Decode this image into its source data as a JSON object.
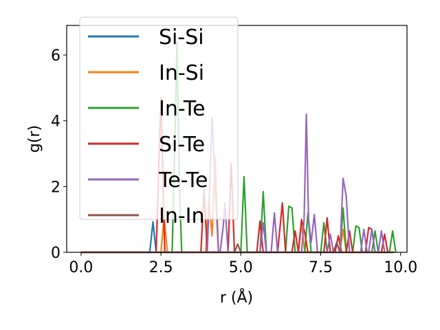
{
  "chart_data": {
    "type": "line",
    "xlabel": "r (Å)",
    "ylabel": "g(r)",
    "xlim": [
      -0.45,
      10.2
    ],
    "ylim": [
      0,
      6.9
    ],
    "xticks": [
      {
        "value": 0.0,
        "label": "0.0"
      },
      {
        "value": 2.5,
        "label": "2.5"
      },
      {
        "value": 5.0,
        "label": "5.0"
      },
      {
        "value": 7.5,
        "label": "7.5"
      },
      {
        "value": 10.0,
        "label": "10.0"
      }
    ],
    "yticks": [
      {
        "value": 0,
        "label": "0"
      },
      {
        "value": 2,
        "label": "2"
      },
      {
        "value": 4,
        "label": "4"
      },
      {
        "value": 6,
        "label": "6"
      }
    ],
    "grid": false,
    "legend_position": "upper-left",
    "series": [
      {
        "name": "Si-Si",
        "color": "#1f77b4",
        "points": [
          [
            0,
            0
          ],
          [
            2.15,
            0
          ],
          [
            2.25,
            0.93
          ],
          [
            2.35,
            0
          ],
          [
            9.8,
            0
          ]
        ]
      },
      {
        "name": "In-Si",
        "color": "#ff7f0e",
        "points": [
          [
            0,
            0
          ],
          [
            2.5,
            0
          ],
          [
            2.6,
            1.1
          ],
          [
            2.7,
            0
          ],
          [
            3.9,
            0
          ],
          [
            4.0,
            1.6
          ],
          [
            4.1,
            0.5
          ],
          [
            4.2,
            2.9
          ],
          [
            4.3,
            0
          ],
          [
            6.8,
            0
          ],
          [
            6.9,
            0.9
          ],
          [
            7.0,
            0
          ],
          [
            8.1,
            0
          ],
          [
            8.2,
            0.7
          ],
          [
            8.3,
            0
          ],
          [
            9.8,
            0
          ]
        ]
      },
      {
        "name": "In-Te",
        "color": "#2ca02c",
        "points": [
          [
            0,
            0
          ],
          [
            2.85,
            0
          ],
          [
            2.95,
            4.0
          ],
          [
            3.0,
            6.4
          ],
          [
            3.08,
            2.0
          ],
          [
            3.15,
            0
          ],
          [
            5.0,
            0
          ],
          [
            5.1,
            2.3
          ],
          [
            5.2,
            0
          ],
          [
            5.6,
            0
          ],
          [
            5.7,
            1.85
          ],
          [
            5.8,
            0
          ],
          [
            6.4,
            0
          ],
          [
            6.5,
            1.4
          ],
          [
            6.6,
            1.35
          ],
          [
            6.7,
            0
          ],
          [
            7.0,
            0
          ],
          [
            7.1,
            1.2
          ],
          [
            7.2,
            0
          ],
          [
            7.5,
            0
          ],
          [
            7.6,
            0.9
          ],
          [
            7.7,
            0
          ],
          [
            8.1,
            0
          ],
          [
            8.2,
            1.35
          ],
          [
            8.3,
            0
          ],
          [
            8.5,
            0
          ],
          [
            8.6,
            0.8
          ],
          [
            8.7,
            0.75
          ],
          [
            8.8,
            0
          ],
          [
            9.1,
            0
          ],
          [
            9.2,
            0.65
          ],
          [
            9.3,
            0
          ],
          [
            9.65,
            0
          ],
          [
            9.75,
            0.65
          ],
          [
            9.85,
            0
          ]
        ]
      },
      {
        "name": "Si-Te",
        "color": "#d62728",
        "points": [
          [
            0,
            0
          ],
          [
            2.35,
            0
          ],
          [
            2.5,
            4.7
          ],
          [
            2.62,
            0
          ],
          [
            3.75,
            0
          ],
          [
            3.85,
            1.9
          ],
          [
            3.95,
            0
          ],
          [
            4.6,
            0
          ],
          [
            4.7,
            2.7
          ],
          [
            4.8,
            0
          ],
          [
            5.5,
            0
          ],
          [
            5.6,
            0.95
          ],
          [
            5.7,
            0
          ],
          [
            6.15,
            0
          ],
          [
            6.3,
            1.5
          ],
          [
            6.4,
            0
          ],
          [
            6.6,
            0
          ],
          [
            6.7,
            0.65
          ],
          [
            6.8,
            0
          ],
          [
            6.9,
            1.0
          ],
          [
            7.0,
            0.6
          ],
          [
            7.1,
            0
          ],
          [
            7.6,
            0
          ],
          [
            7.7,
            1.05
          ],
          [
            7.8,
            0
          ],
          [
            7.95,
            0
          ],
          [
            8.05,
            0.5
          ],
          [
            8.15,
            0
          ],
          [
            8.3,
            0
          ],
          [
            8.4,
            0.65
          ],
          [
            8.5,
            0
          ],
          [
            8.9,
            0
          ],
          [
            9.0,
            0.75
          ],
          [
            9.1,
            0.7
          ],
          [
            9.2,
            0
          ],
          [
            9.4,
            0
          ],
          [
            9.5,
            0.55
          ],
          [
            9.6,
            0
          ]
        ]
      },
      {
        "name": "Te-Te",
        "color": "#9467bd",
        "points": [
          [
            0,
            0
          ],
          [
            3.95,
            0
          ],
          [
            4.1,
            4.1
          ],
          [
            4.2,
            2.0
          ],
          [
            4.3,
            0
          ],
          [
            4.35,
            0
          ],
          [
            4.45,
            0.8
          ],
          [
            4.5,
            1.5
          ],
          [
            4.6,
            0
          ],
          [
            5.6,
            0
          ],
          [
            5.7,
            0.9
          ],
          [
            5.8,
            0
          ],
          [
            5.95,
            0
          ],
          [
            6.05,
            1.2
          ],
          [
            6.15,
            0
          ],
          [
            6.9,
            0
          ],
          [
            6.98,
            1.0
          ],
          [
            7.05,
            4.2
          ],
          [
            7.12,
            1.0
          ],
          [
            7.2,
            0.3
          ],
          [
            7.3,
            1.15
          ],
          [
            7.4,
            0
          ],
          [
            7.7,
            0
          ],
          [
            7.8,
            0.55
          ],
          [
            7.9,
            0
          ],
          [
            8.1,
            0
          ],
          [
            8.2,
            2.25
          ],
          [
            8.3,
            1.7
          ],
          [
            8.4,
            0
          ],
          [
            8.75,
            0
          ],
          [
            8.85,
            0.7
          ],
          [
            8.95,
            0
          ],
          [
            9.0,
            0
          ],
          [
            9.1,
            0.7
          ],
          [
            9.2,
            0
          ],
          [
            9.3,
            0
          ],
          [
            9.4,
            0.65
          ],
          [
            9.5,
            0
          ]
        ]
      },
      {
        "name": "In-In",
        "color": "#8c564b",
        "points": [
          [
            0,
            0
          ],
          [
            4.8,
            0
          ],
          [
            4.9,
            0.25
          ],
          [
            5.0,
            0
          ],
          [
            7.9,
            0
          ],
          [
            8.0,
            0.3
          ],
          [
            8.1,
            0
          ],
          [
            9.8,
            0
          ]
        ]
      }
    ]
  }
}
